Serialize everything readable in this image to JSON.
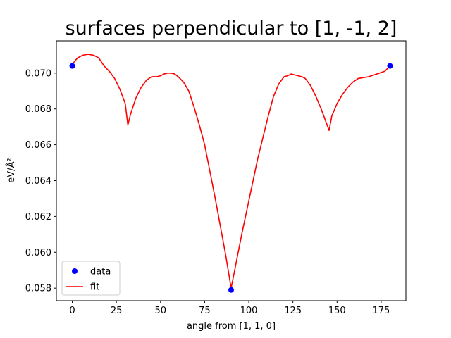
{
  "chart_data": {
    "type": "line",
    "title": "surfaces perpendicular to [1, -1, 2]",
    "xlabel": "angle from [1, 1, 0]",
    "ylabel": "eV/Å²",
    "xlim": [
      -9,
      189
    ],
    "ylim": [
      0.0573,
      0.0718
    ],
    "xticks": [
      0,
      25,
      50,
      75,
      100,
      125,
      150,
      175
    ],
    "yticks": [
      0.058,
      0.06,
      0.062,
      0.064,
      0.066,
      0.068,
      0.07
    ],
    "ytick_labels": [
      "0.058",
      "0.060",
      "0.062",
      "0.064",
      "0.066",
      "0.068",
      "0.070"
    ],
    "legend_position": "lower left",
    "series": [
      {
        "name": "data",
        "style": "markers",
        "color": "#0000ff",
        "x": [
          0,
          90,
          180
        ],
        "y": [
          0.0704,
          0.0579,
          0.0704
        ]
      },
      {
        "name": "fit",
        "style": "line",
        "color": "#ff0000",
        "x": [
          0,
          3,
          6,
          9,
          12,
          15,
          18,
          21,
          24,
          27,
          30,
          31.5,
          33,
          36,
          39,
          42,
          45,
          48,
          50,
          52,
          54,
          56,
          58,
          60,
          63,
          66,
          69,
          72,
          75,
          78,
          81,
          84,
          87,
          90,
          93,
          96,
          99,
          102,
          105,
          108,
          111,
          114,
          117,
          120,
          122,
          124,
          126,
          128,
          130,
          132,
          135,
          138,
          141,
          144,
          145.5,
          147,
          150,
          153,
          156,
          159,
          162,
          165,
          168,
          171,
          174,
          177,
          180
        ],
        "y": [
          0.0705,
          0.07085,
          0.071,
          0.07105,
          0.071,
          0.07085,
          0.0704,
          0.0701,
          0.0697,
          0.0691,
          0.0683,
          0.0671,
          0.0677,
          0.0686,
          0.0692,
          0.0696,
          0.0698,
          0.0698,
          0.06985,
          0.06995,
          0.07,
          0.07,
          0.06995,
          0.0698,
          0.0695,
          0.069,
          0.0681,
          0.0671,
          0.066,
          0.0645,
          0.063,
          0.0614,
          0.0598,
          0.058,
          0.0595,
          0.061,
          0.0624,
          0.0638,
          0.0652,
          0.0664,
          0.0676,
          0.0687,
          0.0694,
          0.0698,
          0.06985,
          0.06995,
          0.0699,
          0.06985,
          0.0698,
          0.0697,
          0.0693,
          0.0687,
          0.068,
          0.0672,
          0.0668,
          0.0676,
          0.0683,
          0.0688,
          0.0692,
          0.0695,
          0.0697,
          0.06975,
          0.0698,
          0.0699,
          0.07,
          0.0701,
          0.0704
        ]
      }
    ]
  }
}
